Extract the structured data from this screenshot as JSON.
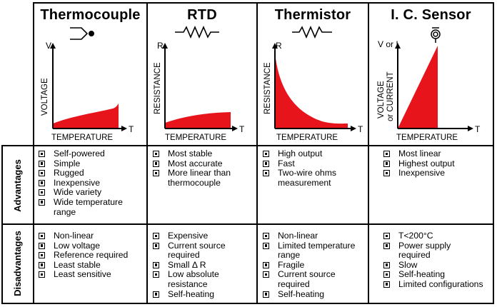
{
  "columns": [
    {
      "title": "Thermocouple",
      "icon": "thermocouple-junction-icon",
      "graph": {
        "y_label": "VOLTAGE",
        "y_symbol": "V",
        "x_label": "TEMPERATURE",
        "x_symbol": "T"
      },
      "advantages": [
        "Self-powered",
        "Simple",
        "Rugged",
        "Inexpensive",
        "Wide variety",
        "Wide temperature",
        "range"
      ],
      "disadvantages": [
        "Non-linear",
        "Low voltage",
        "Reference required",
        "Least stable",
        "Least sensitive"
      ]
    },
    {
      "title": "RTD",
      "icon": "resistor-icon",
      "graph": {
        "y_label": "RESISTANCE",
        "y_symbol": "R",
        "x_label": "TEMPERATURE",
        "x_symbol": "T"
      },
      "advantages": [
        "Most stable",
        "Most accurate",
        "More linear than",
        "thermocouple"
      ],
      "disadvantages": [
        "Expensive",
        "Current source",
        "required",
        "Small Δ R",
        "Low absolute",
        "resistance",
        "Self-heating"
      ]
    },
    {
      "title": "Thermistor",
      "icon": "resistor-icon",
      "graph": {
        "y_label": "RESISTANCE",
        "y_symbol": "R",
        "x_label": "TEMPERATURE",
        "x_symbol": "T"
      },
      "advantages": [
        "High output",
        "Fast",
        "Two-wire ohms",
        "measurement"
      ],
      "disadvantages": [
        "Non-linear",
        "Limited temperature",
        "range",
        "Fragile",
        "Current source",
        "required",
        "Self-heating"
      ]
    },
    {
      "title": "I. C. Sensor",
      "icon": "ic-sensor-icon",
      "graph": {
        "y_label": "VOLTAGE",
        "y_label2": "or CURRENT",
        "y_symbol": "V or I",
        "x_label": "TEMPERATURE",
        "x_symbol": "T"
      },
      "advantages": [
        "Most linear",
        "Highest output",
        "Inexpensive"
      ],
      "disadvantages": [
        "T<200°C",
        "Power supply",
        "required",
        "Slow",
        "Self-heating",
        "Limited configurations"
      ]
    }
  ],
  "rows": {
    "advantages_label": "Advantages",
    "disadvantages_label": "Disadvantages"
  },
  "colors": {
    "fill": "#e8141c",
    "line": "#000000"
  },
  "bullet_rows": {
    "advantages": [
      [
        1,
        1,
        1,
        1,
        1,
        1,
        0
      ],
      [
        1,
        1,
        1,
        0
      ],
      [
        1,
        1,
        1,
        0
      ],
      [
        1,
        1,
        1
      ]
    ],
    "disadvantages": [
      [
        1,
        1,
        1,
        1,
        1
      ],
      [
        1,
        1,
        0,
        1,
        1,
        0,
        1
      ],
      [
        1,
        1,
        0,
        1,
        1,
        0,
        1
      ],
      [
        1,
        1,
        0,
        1,
        1,
        1
      ]
    ]
  }
}
